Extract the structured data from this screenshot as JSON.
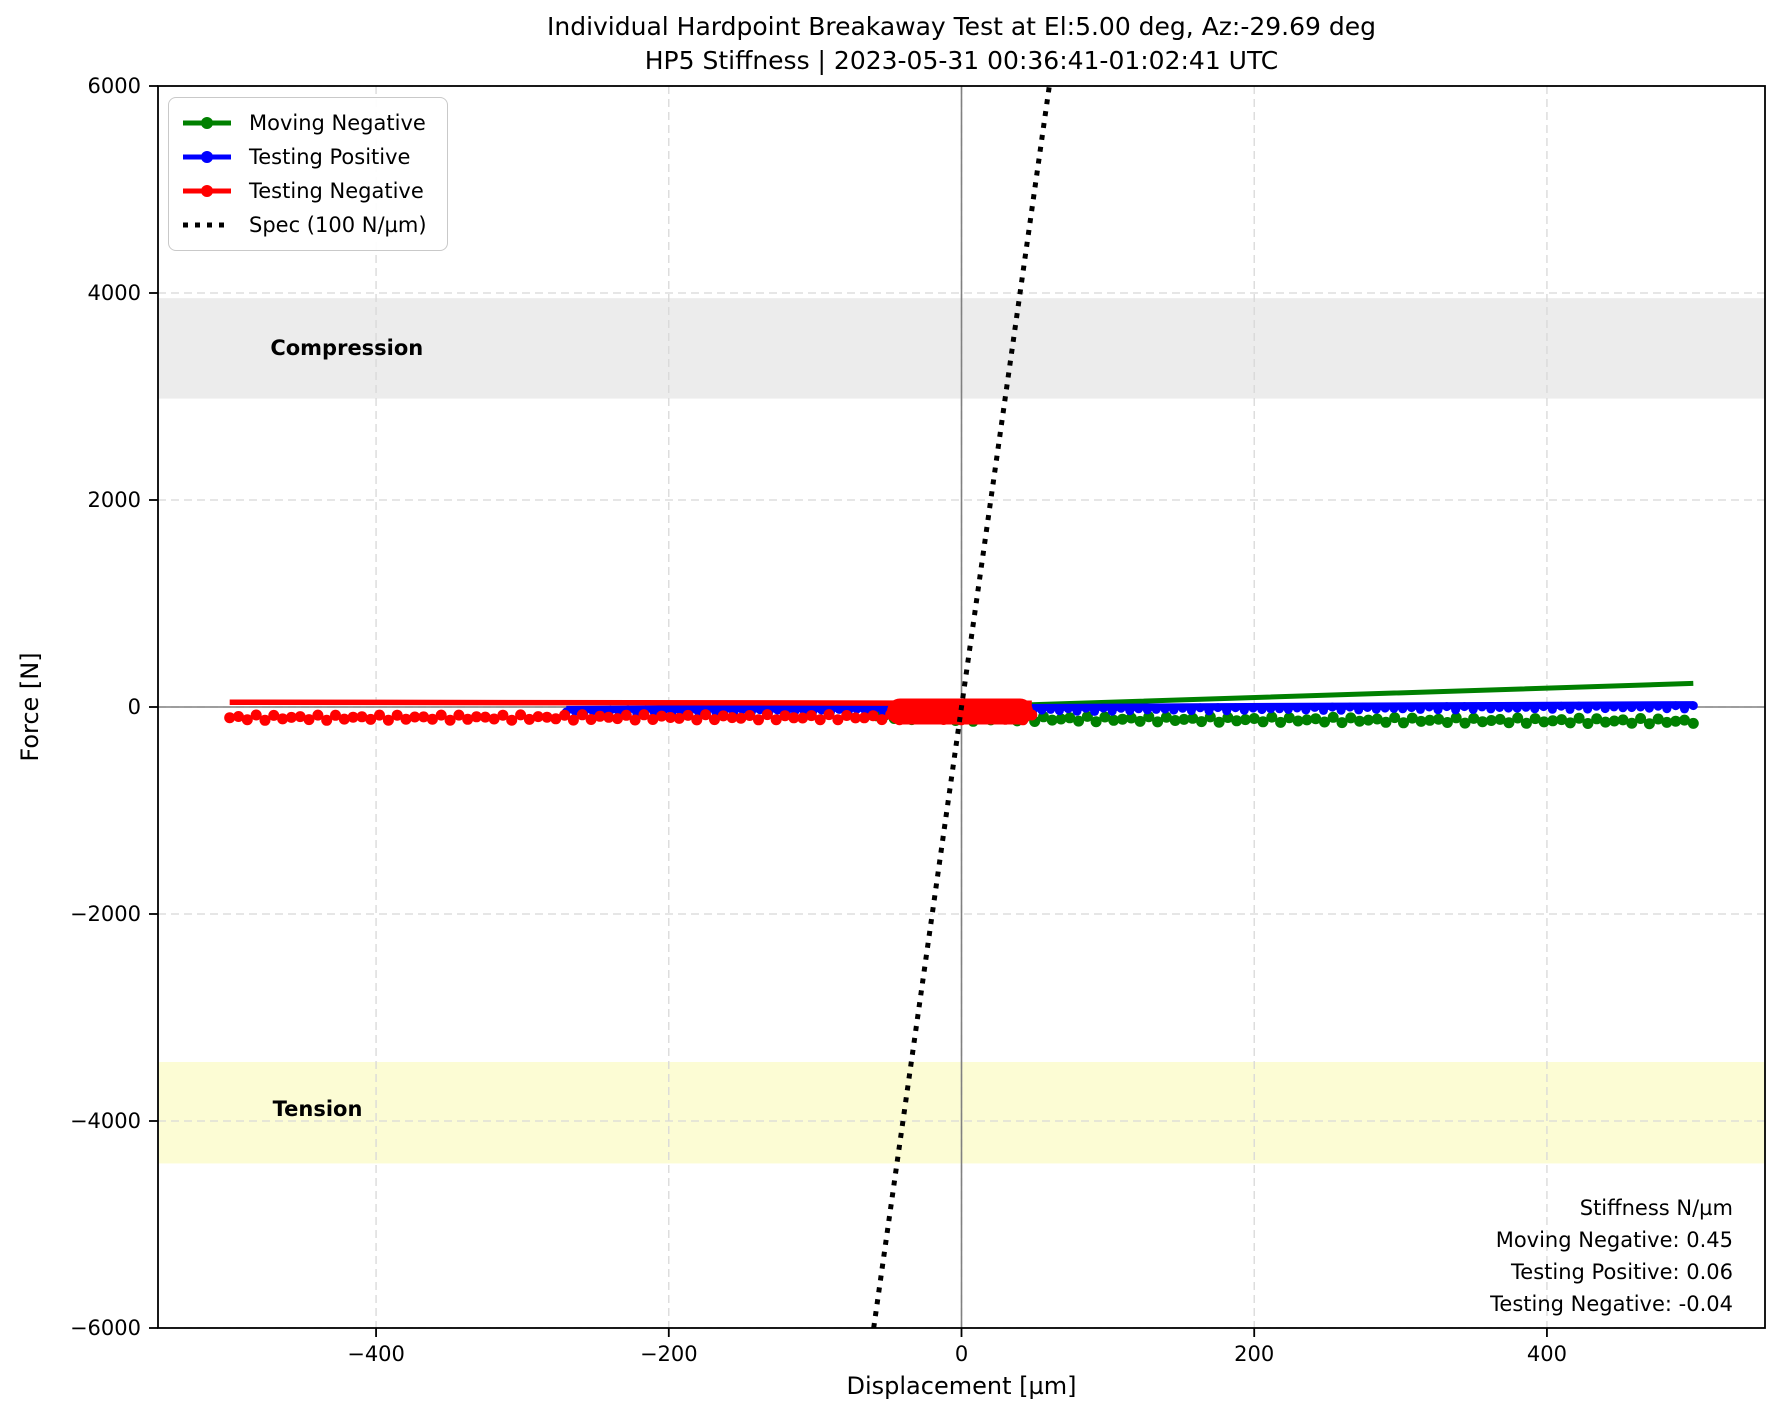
{
  "title": {
    "line1": "Individual Hardpoint Breakaway Test at El:5.00 deg, Az:-29.69 deg",
    "line2": "HP5 Stiffness | 2023-05-31 00:36:41-01:02:41 UTC"
  },
  "chart_data": {
    "type": "line",
    "title": "Individual Hardpoint Breakaway Test at El:5.00 deg, Az:-29.69 deg",
    "subtitle": "HP5 Stiffness | 2023-05-31 00:36:41-01:02:41 UTC",
    "xlabel": "Displacement [µm]",
    "ylabel": "Force [N]",
    "xlim": [
      -549,
      549
    ],
    "ylim": [
      -6000,
      6000
    ],
    "xticks": [
      -400,
      -200,
      0,
      200,
      400
    ],
    "yticks": [
      -6000,
      -4000,
      -2000,
      0,
      2000,
      4000,
      6000
    ],
    "grid": true,
    "legend_position": "upper left",
    "colors": {
      "moving_negative": "#008000",
      "testing_positive": "#0000ff",
      "testing_negative": "#ff0000",
      "spec": "#000000",
      "zero_lines": "#808080",
      "gridline": "#d8d8d8",
      "compression_band": "#ececec",
      "tension_band": "#fcfcd4"
    },
    "bands": [
      {
        "name": "compression",
        "label": "Compression",
        "y_from": 2980,
        "y_to": 3950,
        "color": "#ececec",
        "label_x": -420,
        "label_y": 3470
      },
      {
        "name": "tension",
        "label": "Tension",
        "y_from": -4410,
        "y_to": -3430,
        "color": "#fcfcd4",
        "label_x": -440,
        "label_y": -3885
      }
    ],
    "series": [
      {
        "name": "Moving Negative",
        "color": "#008000",
        "stiffness_n_per_um": 0.45,
        "branches": [
          {
            "kind": "line",
            "width": 5,
            "points": [
              [
                -30,
                -13
              ],
              [
                0,
                0
              ],
              [
                500,
                228
              ]
            ]
          },
          {
            "kind": "markers",
            "marker_r": 5.5,
            "line_width": 2.5,
            "wave_amp": 26,
            "wave_period": 14,
            "step": 6,
            "points": [
              [
                -58,
                -85
              ],
              [
                0,
                -112
              ],
              [
                500,
                -138
              ]
            ]
          }
        ]
      },
      {
        "name": "Testing Positive",
        "color": "#0000ff",
        "stiffness_n_per_um": 0.06,
        "branches": [
          {
            "kind": "line",
            "width": 6,
            "points": [
              [
                -270,
                -18
              ],
              [
                500,
                28
              ]
            ]
          },
          {
            "kind": "markers",
            "marker_r": 4.5,
            "line_width": 2.5,
            "wave_amp": 16,
            "wave_period": 13,
            "step": 6,
            "points": [
              [
                -270,
                -48
              ],
              [
                500,
                -2
              ]
            ]
          }
        ]
      },
      {
        "name": "Testing Negative",
        "color": "#ff0000",
        "stiffness_n_per_um": -0.04,
        "branches": [
          {
            "kind": "line",
            "width": 5.5,
            "points": [
              [
                -500,
                46
              ],
              [
                48,
                36
              ]
            ]
          },
          {
            "kind": "markers",
            "marker_r": 5.5,
            "line_width": 2.5,
            "wave_amp": 26,
            "wave_period": 14,
            "step": 6,
            "points": [
              [
                -500,
                -103
              ],
              [
                48,
                -98
              ]
            ]
          },
          {
            "kind": "line",
            "width": 26,
            "linecap": "round",
            "points": [
              [
                -42,
                -43
              ],
              [
                40,
                -43
              ]
            ]
          }
        ]
      }
    ],
    "spec_line": {
      "label": "Spec (100 N/µm)",
      "slope_n_per_um": 100,
      "color": "#000000",
      "points": [
        [
          -60,
          -6000
        ],
        [
          60,
          6000
        ]
      ]
    },
    "annotation": {
      "lines": [
        "Stiffness N/µm",
        "Moving Negative: 0.45",
        "Testing Positive: 0.06",
        "Testing Negative: -0.04"
      ],
      "values": {
        "moving_negative": 0.45,
        "testing_positive": 0.06,
        "testing_negative": -0.04
      }
    }
  },
  "legend": {
    "items": [
      {
        "label": "Moving Negative",
        "color": "#008000",
        "style": "line-dot"
      },
      {
        "label": "Testing Positive",
        "color": "#0000ff",
        "style": "line-dot"
      },
      {
        "label": "Testing Negative",
        "color": "#ff0000",
        "style": "line-dot"
      },
      {
        "label": "Spec (100 N/µm)",
        "color": "#000000",
        "style": "dotted"
      }
    ]
  }
}
